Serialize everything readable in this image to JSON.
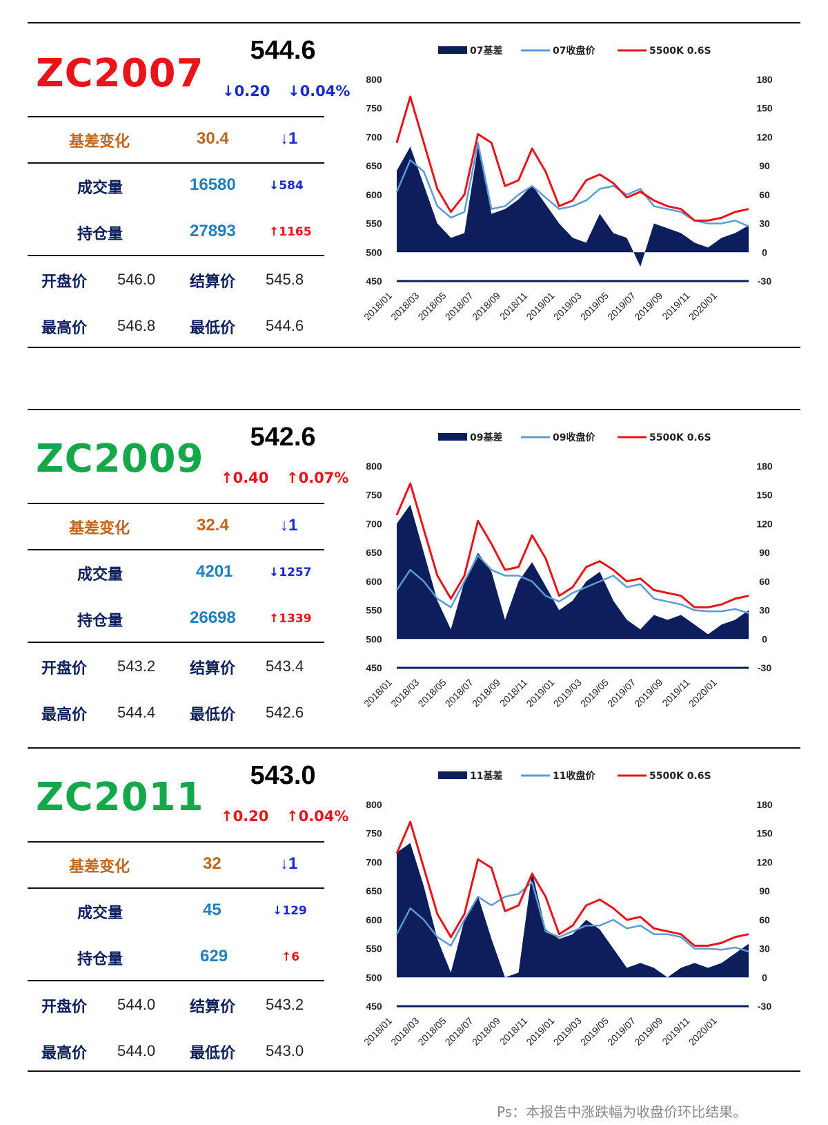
{
  "colors": {
    "red": "#e8141a",
    "green": "#15a84a",
    "navy": "#0c1f5c",
    "blue_line": "#5b9bd5",
    "orange_label": "#c0661f",
    "teal_value": "#1f7fbf",
    "down_blue": "#1a2bcc",
    "up_red": "#e8141a"
  },
  "footnote": "Ps：本报告中涨跌幅为收盘价环比结果。",
  "panels": [
    {
      "code": "ZC2007",
      "code_color": "red",
      "price": "544.6",
      "change": "↓0.20",
      "change_pct": "↓0.04%",
      "change_dir": "down",
      "basis_label": "基差变化",
      "basis_value": "30.4",
      "basis_change": "↓1",
      "volume_label": "成交量",
      "volume_value": "16580",
      "volume_change": "↓584",
      "volume_dir": "down",
      "oi_label": "持仓量",
      "oi_value": "27893",
      "oi_change": "↑1165",
      "oi_dir": "up",
      "open_label": "开盘价",
      "open": "546.0",
      "settle_label": "结算价",
      "settle": "545.8",
      "high_label": "最高价",
      "high": "546.8",
      "low_label": "最低价",
      "low": "544.6"
    },
    {
      "code": "ZC2009",
      "code_color": "green",
      "price": "542.6",
      "change": "↑0.40",
      "change_pct": "↑0.07%",
      "change_dir": "up",
      "basis_label": "基差变化",
      "basis_value": "32.4",
      "basis_change": "↓1",
      "volume_label": "成交量",
      "volume_value": "4201",
      "volume_change": "↓1257",
      "volume_dir": "down",
      "oi_label": "持仓量",
      "oi_value": "26698",
      "oi_change": "↑1339",
      "oi_dir": "up",
      "open_label": "开盘价",
      "open": "543.2",
      "settle_label": "结算价",
      "settle": "543.4",
      "high_label": "最高价",
      "high": "544.4",
      "low_label": "最低价",
      "low": "542.6"
    },
    {
      "code": "ZC2011",
      "code_color": "green",
      "price": "543.0",
      "change": "↑0.20",
      "change_pct": "↑0.04%",
      "change_dir": "up",
      "basis_label": "基差变化",
      "basis_value": "32",
      "basis_change": "↓1",
      "volume_label": "成交量",
      "volume_value": "45",
      "volume_change": "↓129",
      "volume_dir": "down",
      "oi_label": "持仓量",
      "oi_value": "629",
      "oi_change": "↑6",
      "oi_dir": "up",
      "open_label": "开盘价",
      "open": "544.0",
      "settle_label": "结算价",
      "settle": "543.2",
      "high_label": "最高价",
      "high": "544.0",
      "low_label": "最低价",
      "low": "543.0"
    }
  ],
  "chart_data": [
    {
      "type": "line",
      "legend_position": "top",
      "grid": false,
      "x": [
        "2018/01",
        "2018/02",
        "2018/03",
        "2018/04",
        "2018/05",
        "2018/06",
        "2018/07",
        "2018/08",
        "2018/09",
        "2018/10",
        "2018/11",
        "2018/12",
        "2019/01",
        "2019/02",
        "2019/03",
        "2019/04",
        "2019/05",
        "2019/06",
        "2019/07",
        "2019/08",
        "2019/09",
        "2019/10",
        "2019/11",
        "2019/12",
        "2020/01",
        "2020/02",
        "2020/03"
      ],
      "x_tick_labels": [
        "2018/01",
        "2018/03",
        "2018/05",
        "2018/07",
        "2018/09",
        "2018/11",
        "2019/01",
        "2019/03",
        "2019/05",
        "2019/07",
        "2019/09",
        "2019/11",
        "2020/01"
      ],
      "ylim_left": [
        450,
        800
      ],
      "yticks_left": [
        "800",
        "750",
        "700",
        "650",
        "600",
        "550",
        "500",
        "450"
      ],
      "ylim_right": [
        -30,
        180
      ],
      "yticks_right": [
        "180",
        "150",
        "120",
        "90",
        "60",
        "30",
        "0",
        "-30"
      ],
      "series": [
        {
          "name": "07基差",
          "kind": "area",
          "axis": "right",
          "color": "navy",
          "values": [
            85,
            110,
            70,
            30,
            15,
            20,
            110,
            40,
            45,
            55,
            70,
            50,
            30,
            15,
            10,
            40,
            20,
            15,
            -15,
            30,
            25,
            20,
            10,
            5,
            15,
            20,
            28
          ]
        },
        {
          "name": "07收盘价",
          "kind": "line",
          "axis": "left",
          "color": "blue_line",
          "values": [
            605,
            660,
            640,
            580,
            560,
            570,
            690,
            575,
            580,
            600,
            615,
            595,
            575,
            580,
            590,
            610,
            615,
            600,
            610,
            580,
            575,
            570,
            555,
            550,
            550,
            555,
            545
          ]
        },
        {
          "name": "5500K 0.6S",
          "kind": "line",
          "axis": "left",
          "color": "red",
          "values": [
            690,
            770,
            690,
            610,
            570,
            600,
            705,
            690,
            615,
            625,
            680,
            640,
            580,
            590,
            625,
            635,
            620,
            595,
            605,
            590,
            580,
            575,
            555,
            555,
            560,
            570,
            575
          ]
        }
      ]
    },
    {
      "type": "line",
      "legend_position": "top",
      "grid": false,
      "x": [
        "2018/01",
        "2018/02",
        "2018/03",
        "2018/04",
        "2018/05",
        "2018/06",
        "2018/07",
        "2018/08",
        "2018/09",
        "2018/10",
        "2018/11",
        "2018/12",
        "2019/01",
        "2019/02",
        "2019/03",
        "2019/04",
        "2019/05",
        "2019/06",
        "2019/07",
        "2019/08",
        "2019/09",
        "2019/10",
        "2019/11",
        "2019/12",
        "2020/01",
        "2020/02",
        "2020/03"
      ],
      "x_tick_labels": [
        "2018/01",
        "2018/03",
        "2018/05",
        "2018/07",
        "2018/09",
        "2018/11",
        "2019/01",
        "2019/03",
        "2019/05",
        "2019/07",
        "2019/09",
        "2019/11",
        "2020/01"
      ],
      "ylim_left": [
        450,
        800
      ],
      "yticks_left": [
        "800",
        "750",
        "700",
        "650",
        "600",
        "550",
        "500",
        "450"
      ],
      "ylim_right": [
        -30,
        180
      ],
      "yticks_right": [
        "180",
        "150",
        "120",
        "90",
        "60",
        "30",
        "0",
        "-30"
      ],
      "series": [
        {
          "name": "09基差",
          "kind": "area",
          "axis": "right",
          "color": "navy",
          "values": [
            120,
            140,
            90,
            40,
            10,
            60,
            90,
            70,
            20,
            60,
            80,
            55,
            30,
            40,
            60,
            70,
            40,
            20,
            10,
            25,
            20,
            25,
            15,
            5,
            15,
            20,
            30
          ]
        },
        {
          "name": "09收盘价",
          "kind": "line",
          "axis": "left",
          "color": "blue_line",
          "values": [
            585,
            620,
            600,
            570,
            555,
            600,
            645,
            620,
            610,
            610,
            600,
            575,
            565,
            580,
            590,
            600,
            610,
            590,
            595,
            570,
            565,
            560,
            550,
            548,
            548,
            552,
            545
          ]
        },
        {
          "name": "5500K 0.6S",
          "kind": "line",
          "axis": "left",
          "color": "red",
          "values": [
            715,
            770,
            690,
            610,
            570,
            610,
            705,
            665,
            620,
            625,
            680,
            640,
            575,
            590,
            625,
            635,
            620,
            600,
            605,
            585,
            580,
            575,
            555,
            555,
            560,
            570,
            575
          ]
        }
      ]
    },
    {
      "type": "line",
      "legend_position": "top",
      "grid": false,
      "x": [
        "2018/01",
        "2018/02",
        "2018/03",
        "2018/04",
        "2018/05",
        "2018/06",
        "2018/07",
        "2018/08",
        "2018/09",
        "2018/10",
        "2018/11",
        "2018/12",
        "2019/01",
        "2019/02",
        "2019/03",
        "2019/04",
        "2019/05",
        "2019/06",
        "2019/07",
        "2019/08",
        "2019/09",
        "2019/10",
        "2019/11",
        "2019/12",
        "2020/01",
        "2020/02",
        "2020/03"
      ],
      "x_tick_labels": [
        "2018/01",
        "2018/03",
        "2018/05",
        "2018/07",
        "2018/09",
        "2018/11",
        "2019/01",
        "2019/03",
        "2019/05",
        "2019/07",
        "2019/09",
        "2019/11",
        "2020/01"
      ],
      "ylim_left": [
        450,
        800
      ],
      "yticks_left": [
        "800",
        "750",
        "700",
        "650",
        "600",
        "550",
        "500",
        "450"
      ],
      "ylim_right": [
        -30,
        180
      ],
      "yticks_right": [
        "180",
        "150",
        "120",
        "90",
        "60",
        "30",
        "0",
        "-30"
      ],
      "series": [
        {
          "name": "11基差",
          "kind": "area",
          "axis": "right",
          "color": "navy",
          "values": [
            130,
            140,
            95,
            40,
            5,
            60,
            85,
            40,
            0,
            5,
            110,
            50,
            40,
            45,
            60,
            50,
            30,
            10,
            15,
            10,
            0,
            10,
            15,
            10,
            15,
            25,
            35
          ]
        },
        {
          "name": "11收盘价",
          "kind": "line",
          "axis": "left",
          "color": "blue_line",
          "values": [
            575,
            620,
            600,
            570,
            555,
            600,
            640,
            625,
            640,
            645,
            665,
            580,
            570,
            580,
            590,
            590,
            600,
            585,
            590,
            575,
            575,
            570,
            550,
            550,
            548,
            552,
            545
          ]
        },
        {
          "name": "5500K 0.6S",
          "kind": "line",
          "axis": "left",
          "color": "red",
          "values": [
            715,
            770,
            690,
            610,
            570,
            610,
            705,
            690,
            615,
            625,
            680,
            640,
            575,
            590,
            625,
            635,
            620,
            600,
            605,
            585,
            580,
            575,
            555,
            555,
            560,
            570,
            575
          ]
        }
      ]
    }
  ]
}
